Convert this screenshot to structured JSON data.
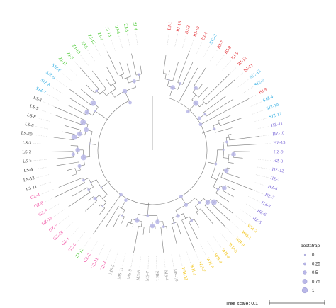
{
  "figure": {
    "bootstrap_color": "#b9b7e8",
    "branch_color": "#7a7a7a",
    "guide_color": "#cfcfcf"
  },
  "groups": [
    {
      "name": "BJ",
      "color": "#e0242a"
    },
    {
      "name": "SJZ",
      "color": "#27a9e1"
    },
    {
      "name": "HZ",
      "color": "#7563d6"
    },
    {
      "name": "WH",
      "color": "#f2c418"
    },
    {
      "name": "MS",
      "color": "#9a9a9a"
    },
    {
      "name": "GZ",
      "color": "#f0409a"
    },
    {
      "name": "LS",
      "color": "#333333"
    },
    {
      "name": "ZJ",
      "color": "#39c41f"
    }
  ],
  "leaves": [
    {
      "label": "BJ-1",
      "group": "BJ"
    },
    {
      "label": "BJ-13",
      "group": "BJ"
    },
    {
      "label": "BJ-3",
      "group": "BJ"
    },
    {
      "label": "BJ-10",
      "group": "BJ"
    },
    {
      "label": "BJ-4",
      "group": "BJ"
    },
    {
      "label": "SJZ-3",
      "group": "SJZ"
    },
    {
      "label": "BJ-7",
      "group": "BJ"
    },
    {
      "label": "BJ-8",
      "group": "BJ"
    },
    {
      "label": "BJ-5",
      "group": "BJ"
    },
    {
      "label": "BJ-12",
      "group": "BJ"
    },
    {
      "label": "BJ-11",
      "group": "BJ"
    },
    {
      "label": "SJZ-13",
      "group": "SJZ"
    },
    {
      "label": "SJZ-5",
      "group": "SJZ"
    },
    {
      "label": "BJ-9",
      "group": "BJ"
    },
    {
      "label": "SJZ-4",
      "group": "SJZ"
    },
    {
      "label": "SJZ-10",
      "group": "SJZ"
    },
    {
      "label": "SJZ-12",
      "group": "SJZ"
    },
    {
      "label": "HZ-11",
      "group": "HZ"
    },
    {
      "label": "HZ-10",
      "group": "HZ"
    },
    {
      "label": "HZ-13",
      "group": "HZ"
    },
    {
      "label": "HZ-9",
      "group": "HZ"
    },
    {
      "label": "HZ-8",
      "group": "HZ"
    },
    {
      "label": "HZ-12",
      "group": "HZ"
    },
    {
      "label": "HZ-1",
      "group": "HZ"
    },
    {
      "label": "HZ-4",
      "group": "HZ"
    },
    {
      "label": "HZ-7",
      "group": "HZ"
    },
    {
      "label": "HZ-3",
      "group": "HZ"
    },
    {
      "label": "HZ-6",
      "group": "HZ"
    },
    {
      "label": "HZ-5",
      "group": "HZ"
    },
    {
      "label": "WH-2",
      "group": "WH"
    },
    {
      "label": "WH-1",
      "group": "WH"
    },
    {
      "label": "WH-9",
      "group": "WH"
    },
    {
      "label": "WH-5",
      "group": "WH"
    },
    {
      "label": "WH-8",
      "group": "WH"
    },
    {
      "label": "WH-4",
      "group": "WH"
    },
    {
      "label": "WH-6",
      "group": "WH"
    },
    {
      "label": "WH-7",
      "group": "WH"
    },
    {
      "label": "WH-3",
      "group": "WH"
    },
    {
      "label": "WH-12",
      "group": "WH"
    },
    {
      "label": "MS-10",
      "group": "MS"
    },
    {
      "label": "MS-4",
      "group": "MS"
    },
    {
      "label": "MS-1",
      "group": "MS"
    },
    {
      "label": "MS-7",
      "group": "MS"
    },
    {
      "label": "MS-8",
      "group": "MS"
    },
    {
      "label": "MS-9",
      "group": "MS"
    },
    {
      "label": "MS-11",
      "group": "MS"
    },
    {
      "label": "MS-5",
      "group": "MS"
    },
    {
      "label": "GZ-3",
      "group": "GZ"
    },
    {
      "label": "GZ-11",
      "group": "GZ"
    },
    {
      "label": "GZ-2",
      "group": "GZ"
    },
    {
      "label": "ZJ-12",
      "group": "ZJ"
    },
    {
      "label": "GZ-6",
      "group": "GZ"
    },
    {
      "label": "GZ-1",
      "group": "GZ"
    },
    {
      "label": "GZ-10",
      "group": "GZ"
    },
    {
      "label": "GZ-5",
      "group": "GZ"
    },
    {
      "label": "GZ-13",
      "group": "GZ"
    },
    {
      "label": "GZ-9",
      "group": "GZ"
    },
    {
      "label": "GZ-8",
      "group": "GZ"
    },
    {
      "label": "GZ-4",
      "group": "GZ"
    },
    {
      "label": "LS-11",
      "group": "LS"
    },
    {
      "label": "LS-12",
      "group": "LS"
    },
    {
      "label": "LS-4",
      "group": "LS"
    },
    {
      "label": "LS-5",
      "group": "LS"
    },
    {
      "label": "LS-2",
      "group": "LS"
    },
    {
      "label": "LS-3",
      "group": "LS"
    },
    {
      "label": "LS-10",
      "group": "LS"
    },
    {
      "label": "LS-6",
      "group": "LS"
    },
    {
      "label": "LS-8",
      "group": "LS"
    },
    {
      "label": "LS-9",
      "group": "LS"
    },
    {
      "label": "LS-1",
      "group": "LS"
    },
    {
      "label": "SJZ-7",
      "group": "SJZ"
    },
    {
      "label": "SJZ-8",
      "group": "SJZ"
    },
    {
      "label": "SJZ-9",
      "group": "SJZ"
    },
    {
      "label": "SJZ-6",
      "group": "SJZ"
    },
    {
      "label": "ZJ-11",
      "group": "ZJ"
    },
    {
      "label": "ZJ-3",
      "group": "ZJ"
    },
    {
      "label": "ZJ-10",
      "group": "ZJ"
    },
    {
      "label": "ZJ-5",
      "group": "ZJ"
    },
    {
      "label": "ZJ-15",
      "group": "ZJ"
    },
    {
      "label": "ZJ-7",
      "group": "ZJ"
    },
    {
      "label": "ZJ-13",
      "group": "ZJ"
    },
    {
      "label": "ZJ-6",
      "group": "ZJ"
    },
    {
      "label": "ZJ-8",
      "group": "ZJ"
    },
    {
      "label": "ZJ-4",
      "group": "ZJ"
    }
  ],
  "legend": {
    "title": "bootstrap",
    "items": [
      {
        "label": "0",
        "value": 0
      },
      {
        "label": "0.25",
        "value": 0.25
      },
      {
        "label": "0.5",
        "value": 0.5
      },
      {
        "label": "0.75",
        "value": 0.75
      },
      {
        "label": "1",
        "value": 1
      }
    ]
  },
  "scale": {
    "label": "Tree scale: 0.1"
  }
}
